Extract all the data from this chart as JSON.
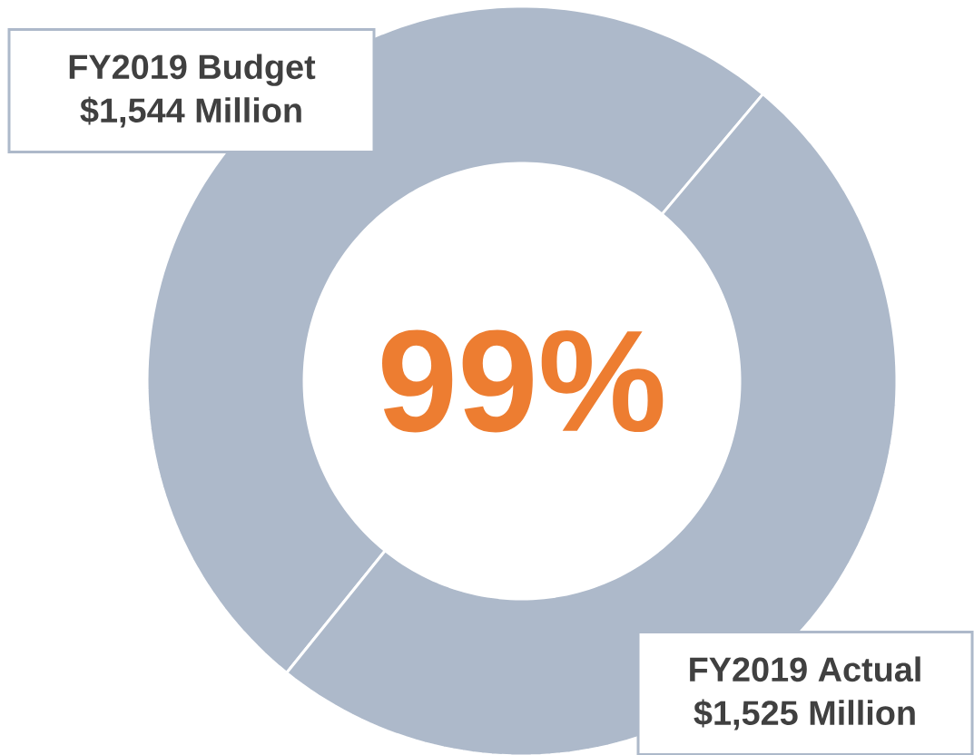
{
  "chart_data": {
    "type": "donut",
    "categories": [
      "FY2019 Budget",
      "FY2019 Actual"
    ],
    "values": [
      1544,
      1525
    ],
    "value_labels": [
      "$1,544 Million",
      "$1,525 Million"
    ],
    "colors": [
      "#adb9ca",
      "#adb9ca"
    ],
    "annotations": [
      "99%"
    ]
  }
}
